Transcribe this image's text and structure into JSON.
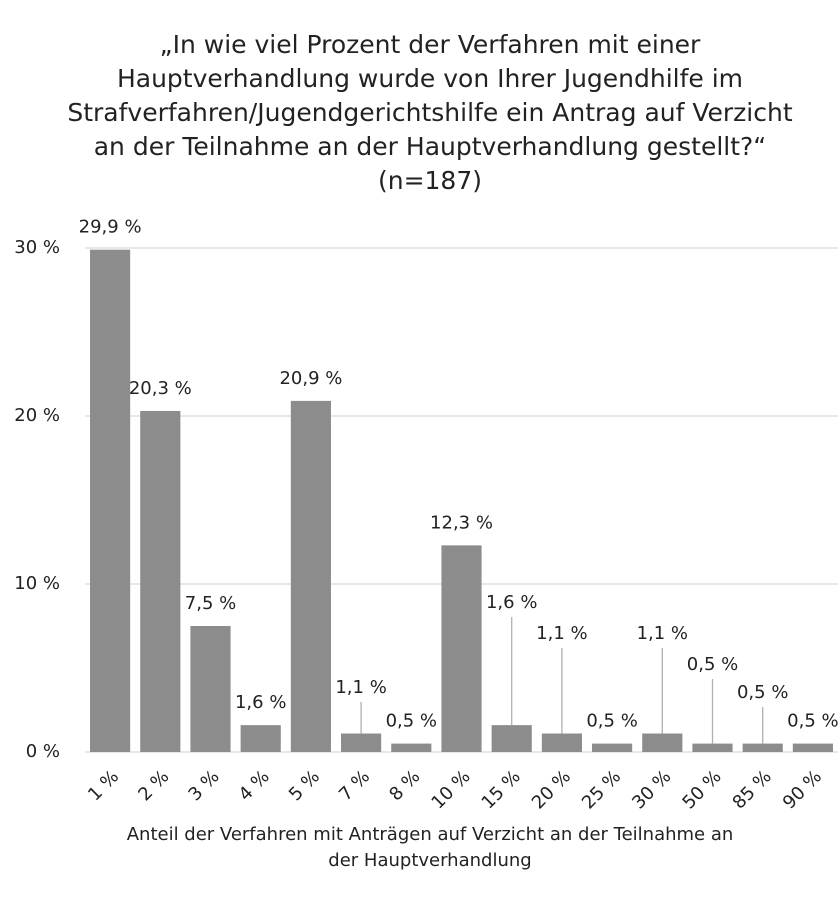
{
  "chart_data": {
    "type": "bar",
    "title": "„In wie viel Prozent der Verfahren mit einer Hauptverhandlung wurde von Ihrer Jugendhilfe im Strafverfahren/Jugendgerichtshilfe ein Antrag auf Verzicht an der Teilnahme an der Hauptverhandlung gestellt?“ (n=187)",
    "x_label": "Anteil der Verfahren mit Anträgen auf Verzicht an der Teilnahme an der Hauptverhandlung",
    "categories": [
      "1 %",
      "2 %",
      "3 %",
      "4 %",
      "5 %",
      "7 %",
      "8 %",
      "10 %",
      "15 %",
      "20 %",
      "25 %",
      "30 %",
      "50 %",
      "85 %",
      "90 %"
    ],
    "values": [
      29.9,
      20.3,
      7.5,
      1.6,
      20.9,
      1.1,
      0.5,
      12.3,
      1.6,
      1.1,
      0.5,
      1.1,
      0.5,
      0.5,
      0.5
    ],
    "value_labels": [
      "29,9 %",
      "20,3 %",
      "7,5 %",
      "1,6 %",
      "20,9 %",
      "1,1 %",
      "0,5 %",
      "12,3 %",
      "1,6 %",
      "1,1 %",
      "0,5 %",
      "1,1 %",
      "0,5 %",
      "0,5 %",
      "0,5 %"
    ],
    "color": "#8c8c8c",
    "ylim": [
      0,
      30
    ],
    "yticks": [
      {
        "value": 0,
        "label": "0 %"
      },
      {
        "value": 10,
        "label": "10 %"
      },
      {
        "value": 20,
        "label": "20 %"
      },
      {
        "value": 30,
        "label": "30 %"
      }
    ],
    "grid": true
  }
}
